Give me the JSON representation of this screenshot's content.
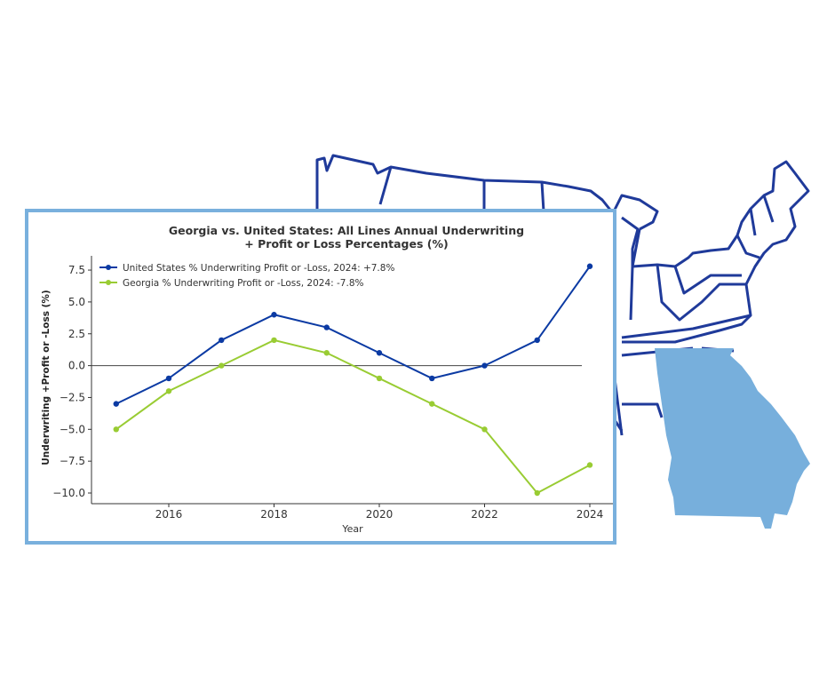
{
  "colors": {
    "us_line": "#0b3aa3",
    "georgia_line": "#99cc33",
    "frame": "#79b0dd",
    "map_outline": "#1f3a9a",
    "georgia_fill": "#77afdc"
  },
  "chart_data": {
    "type": "line",
    "title_line1": "Georgia vs. United States: All Lines Annual Underwriting",
    "title_line2": "+ Profit or Loss Percentages (%)",
    "xlabel": "Year",
    "ylabel": "Underwriting +Profit or -Loss (%)",
    "x": [
      2015,
      2016,
      2017,
      2018,
      2019,
      2020,
      2021,
      2022,
      2023,
      2024
    ],
    "xticks": [
      "2016",
      "2018",
      "2020",
      "2022",
      "2024"
    ],
    "yticks": [
      "7.5",
      "5.0",
      "2.5",
      "0.0",
      "−2.5",
      "−5.0",
      "−7.5",
      "−10.0"
    ],
    "ylim": [
      -10.8,
      8.3
    ],
    "grid": false,
    "legend_placement": "top-left",
    "series": [
      {
        "name": "United States % Underwriting Profit or -Loss, 2024: +7.8%",
        "values": [
          -3,
          -1,
          2,
          4,
          3,
          1,
          -1,
          0,
          2,
          7.8
        ]
      },
      {
        "name": "Georgia % Underwriting Profit or -Loss, 2024: -7.8%",
        "values": [
          -5,
          -2,
          0,
          2,
          1,
          -1,
          -3,
          -5,
          -10,
          -7.8
        ]
      }
    ]
  }
}
